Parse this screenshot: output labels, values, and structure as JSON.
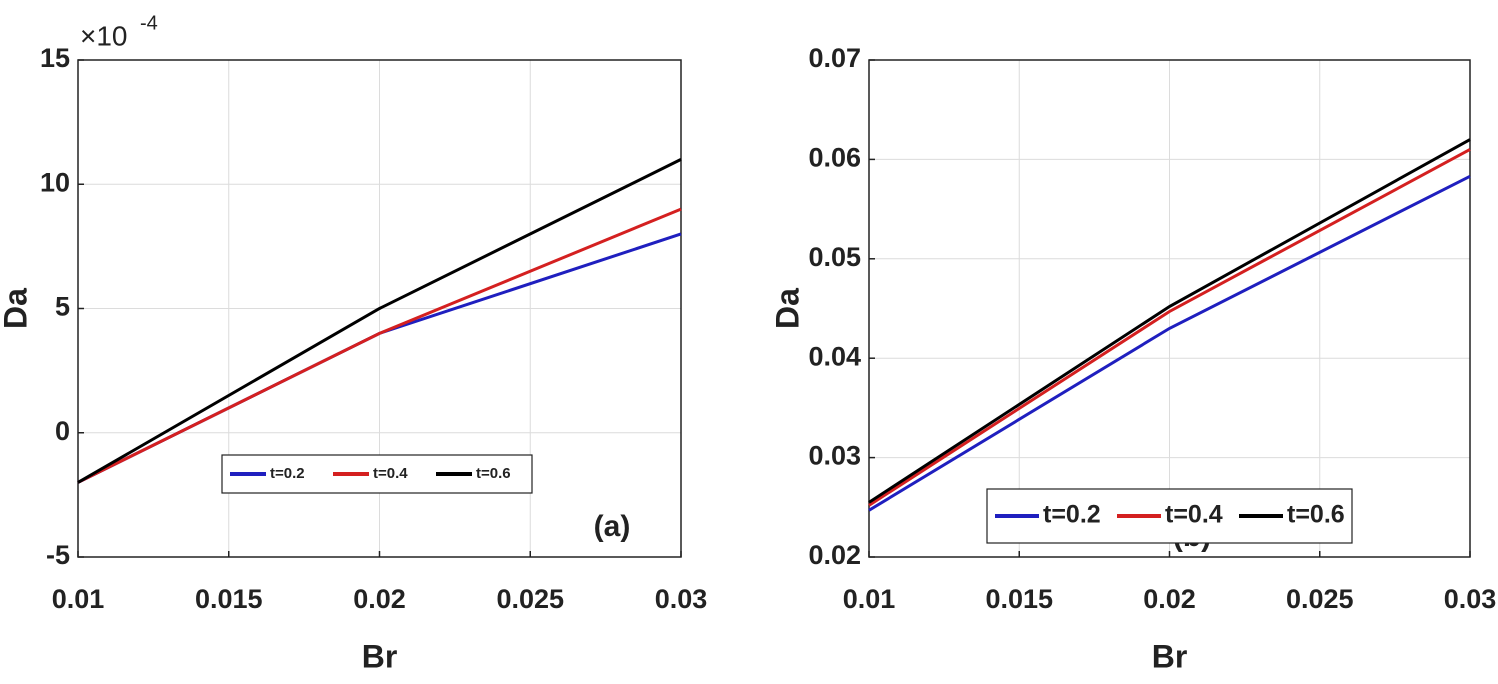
{
  "chart_data": [
    {
      "type": "line",
      "x_label": "Br",
      "y_label": "Da",
      "y_scale_label": "×10",
      "y_scale_exponent": "-4",
      "annotation": "(a)",
      "x": [
        0.01,
        0.02,
        0.03
      ],
      "series": [
        {
          "name": "t=0.2",
          "color": "#1f1fbf",
          "values": [
            -2,
            4,
            8
          ]
        },
        {
          "name": "t=0.4",
          "color": "#d42020",
          "values": [
            -2,
            4,
            9
          ]
        },
        {
          "name": "t=0.6",
          "color": "#000000",
          "values": [
            -2,
            5,
            11
          ]
        }
      ],
      "xlim": [
        0.01,
        0.03
      ],
      "xticks": [
        0.01,
        0.015,
        0.02,
        0.025,
        0.03
      ],
      "ylim": [
        -5,
        15
      ],
      "yticks": [
        -5,
        0,
        5,
        10,
        15
      ],
      "grid": true,
      "legend": "lower center"
    },
    {
      "type": "line",
      "x_label": "Br",
      "y_label": "Da",
      "annotation": "(b)",
      "x": [
        0.01,
        0.02,
        0.03
      ],
      "series": [
        {
          "name": "t=0.2",
          "color": "#1f1fbf",
          "values": [
            0.0247,
            0.043,
            0.0583
          ]
        },
        {
          "name": "t=0.4",
          "color": "#d42020",
          "values": [
            0.0252,
            0.0447,
            0.061
          ]
        },
        {
          "name": "t=0.6",
          "color": "#000000",
          "values": [
            0.0255,
            0.0452,
            0.062
          ]
        }
      ],
      "xlim": [
        0.01,
        0.03
      ],
      "xticks": [
        0.01,
        0.015,
        0.02,
        0.025,
        0.03
      ],
      "ylim": [
        0.02,
        0.07
      ],
      "yticks": [
        0.02,
        0.03,
        0.04,
        0.05,
        0.06,
        0.07
      ],
      "grid": true,
      "legend": "lower center"
    }
  ]
}
